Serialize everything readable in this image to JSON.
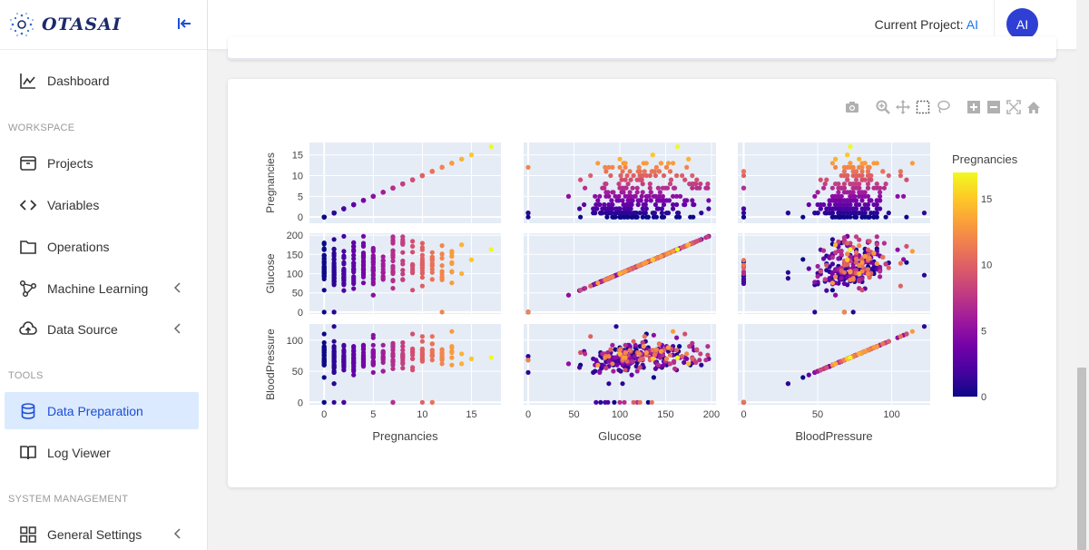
{
  "brand": {
    "name": "OTASAI"
  },
  "sidebar": {
    "items": [
      {
        "label": "Dashboard",
        "icon": "chart-line-icon"
      },
      {
        "label": "Projects",
        "icon": "archive-icon"
      },
      {
        "label": "Variables",
        "icon": "code-icon"
      },
      {
        "label": "Operations",
        "icon": "folder-icon"
      },
      {
        "label": "Machine Learning",
        "icon": "network-icon"
      },
      {
        "label": "Data Source",
        "icon": "cloud-upload-icon"
      },
      {
        "label": "Data Preparation",
        "icon": "database-icon"
      },
      {
        "label": "Log Viewer",
        "icon": "book-icon"
      },
      {
        "label": "General Settings",
        "icon": "grid-icon"
      }
    ],
    "sections": {
      "workspace": "WORKSPACE",
      "tools": "TOOLS",
      "system": "SYSTEM MANAGEMENT"
    }
  },
  "header": {
    "project_prefix": "Current Project: ",
    "project_name": "AI",
    "avatar": "AI"
  },
  "colors": {
    "accent": "#1d4ed8",
    "active_bg": "#dbeafe",
    "plot_bg": "#e5ecf6",
    "avatar": "#2f3fd3"
  },
  "chart_data": {
    "type": "scatter",
    "title": "",
    "variables": [
      "Pregnancies",
      "Glucose",
      "BloodPressure"
    ],
    "color_by": "Pregnancies",
    "colorbar": {
      "title": "Pregnancies",
      "ticks": [
        0,
        5,
        10,
        15
      ],
      "range": [
        0,
        17
      ]
    },
    "axis_ticks": {
      "Pregnancies": [
        0,
        5,
        10,
        15
      ],
      "Glucose": [
        0,
        50,
        100,
        150,
        200
      ],
      "BloodPressure": [
        0,
        50,
        100
      ]
    },
    "ranges": {
      "Pregnancies": [
        -1.5,
        18
      ],
      "Glucose": [
        -5,
        205
      ],
      "BloodPressure": [
        -4,
        126
      ]
    },
    "points": [
      [
        0,
        148,
        72
      ],
      [
        1,
        85,
        66
      ],
      [
        8,
        183,
        64
      ],
      [
        1,
        89,
        66
      ],
      [
        0,
        137,
        40
      ],
      [
        5,
        116,
        74
      ],
      [
        3,
        78,
        50
      ],
      [
        10,
        115,
        0
      ],
      [
        2,
        197,
        70
      ],
      [
        8,
        125,
        96
      ],
      [
        4,
        110,
        92
      ],
      [
        10,
        168,
        74
      ],
      [
        10,
        139,
        80
      ],
      [
        1,
        189,
        60
      ],
      [
        5,
        166,
        72
      ],
      [
        7,
        100,
        0
      ],
      [
        0,
        118,
        84
      ],
      [
        7,
        107,
        74
      ],
      [
        1,
        103,
        30
      ],
      [
        1,
        115,
        70
      ],
      [
        3,
        126,
        88
      ],
      [
        8,
        99,
        84
      ],
      [
        7,
        196,
        90
      ],
      [
        9,
        119,
        80
      ],
      [
        11,
        143,
        94
      ],
      [
        10,
        125,
        70
      ],
      [
        7,
        147,
        76
      ],
      [
        1,
        97,
        66
      ],
      [
        13,
        145,
        82
      ],
      [
        5,
        117,
        92
      ],
      [
        5,
        109,
        75
      ],
      [
        3,
        158,
        76
      ],
      [
        3,
        88,
        58
      ],
      [
        6,
        92,
        92
      ],
      [
        10,
        122,
        78
      ],
      [
        4,
        103,
        60
      ],
      [
        11,
        138,
        76
      ],
      [
        9,
        102,
        76
      ],
      [
        2,
        90,
        68
      ],
      [
        4,
        111,
        72
      ],
      [
        3,
        180,
        64
      ],
      [
        7,
        133,
        84
      ],
      [
        7,
        106,
        92
      ],
      [
        9,
        171,
        110
      ],
      [
        7,
        159,
        64
      ],
      [
        0,
        180,
        66
      ],
      [
        1,
        146,
        56
      ],
      [
        2,
        71,
        70
      ],
      [
        7,
        103,
        66
      ],
      [
        7,
        105,
        0
      ],
      [
        1,
        103,
        80
      ],
      [
        1,
        101,
        50
      ],
      [
        5,
        88,
        66
      ],
      [
        8,
        176,
        90
      ],
      [
        7,
        150,
        66
      ],
      [
        1,
        73,
        50
      ],
      [
        7,
        187,
        68
      ],
      [
        0,
        100,
        88
      ],
      [
        0,
        146,
        82
      ],
      [
        0,
        105,
        64
      ],
      [
        2,
        84,
        0
      ],
      [
        8,
        133,
        72
      ],
      [
        5,
        44,
        62
      ],
      [
        2,
        141,
        58
      ],
      [
        7,
        114,
        66
      ],
      [
        5,
        99,
        74
      ],
      [
        0,
        109,
        88
      ],
      [
        2,
        109,
        92
      ],
      [
        1,
        95,
        66
      ],
      [
        4,
        146,
        85
      ],
      [
        2,
        100,
        66
      ],
      [
        5,
        139,
        64
      ],
      [
        13,
        126,
        90
      ],
      [
        4,
        129,
        86
      ],
      [
        1,
        79,
        75
      ],
      [
        1,
        0,
        48
      ],
      [
        7,
        62,
        78
      ],
      [
        5,
        95,
        72
      ],
      [
        0,
        131,
        0
      ],
      [
        2,
        112,
        66
      ],
      [
        3,
        113,
        44
      ],
      [
        2,
        74,
        0
      ],
      [
        7,
        83,
        78
      ],
      [
        0,
        101,
        65
      ],
      [
        5,
        137,
        108
      ],
      [
        2,
        110,
        74
      ],
      [
        13,
        106,
        72
      ],
      [
        2,
        100,
        68
      ],
      [
        15,
        136,
        70
      ],
      [
        1,
        107,
        68
      ],
      [
        1,
        80,
        55
      ],
      [
        4,
        123,
        80
      ],
      [
        7,
        81,
        78
      ],
      [
        4,
        134,
        72
      ],
      [
        2,
        142,
        82
      ],
      [
        6,
        144,
        72
      ],
      [
        2,
        92,
        62
      ],
      [
        1,
        71,
        48
      ],
      [
        6,
        93,
        50
      ],
      [
        1,
        122,
        90
      ],
      [
        1,
        163,
        72
      ],
      [
        1,
        151,
        60
      ],
      [
        0,
        125,
        96
      ],
      [
        1,
        81,
        72
      ],
      [
        2,
        85,
        65
      ],
      [
        1,
        126,
        56
      ],
      [
        1,
        96,
        122
      ],
      [
        4,
        144,
        58
      ],
      [
        3,
        83,
        58
      ],
      [
        0,
        95,
        85
      ],
      [
        3,
        171,
        72
      ],
      [
        8,
        155,
        62
      ],
      [
        1,
        89,
        76
      ],
      [
        4,
        76,
        62
      ],
      [
        7,
        160,
        54
      ],
      [
        4,
        146,
        92
      ],
      [
        5,
        124,
        74
      ],
      [
        5,
        78,
        48
      ],
      [
        4,
        97,
        60
      ],
      [
        4,
        99,
        76
      ],
      [
        0,
        162,
        76
      ],
      [
        6,
        111,
        64
      ],
      [
        2,
        107,
        74
      ],
      [
        5,
        132,
        80
      ],
      [
        0,
        113,
        76
      ],
      [
        1,
        88,
        30
      ],
      [
        3,
        120,
        70
      ],
      [
        1,
        118,
        58
      ],
      [
        1,
        117,
        88
      ],
      [
        0,
        105,
        84
      ],
      [
        4,
        173,
        70
      ],
      [
        9,
        122,
        56
      ],
      [
        3,
        170,
        64
      ],
      [
        8,
        84,
        74
      ],
      [
        2,
        96,
        68
      ],
      [
        2,
        125,
        60
      ],
      [
        0,
        100,
        70
      ],
      [
        0,
        93,
        60
      ],
      [
        5,
        129,
        80
      ],
      [
        2,
        105,
        72
      ],
      [
        3,
        128,
        78
      ],
      [
        5,
        106,
        82
      ],
      [
        2,
        108,
        52
      ],
      [
        10,
        108,
        66
      ],
      [
        4,
        154,
        62
      ],
      [
        0,
        102,
        75
      ],
      [
        9,
        57,
        80
      ],
      [
        2,
        106,
        64
      ],
      [
        5,
        147,
        78
      ],
      [
        2,
        90,
        70
      ],
      [
        1,
        136,
        74
      ],
      [
        4,
        114,
        65
      ],
      [
        9,
        156,
        86
      ],
      [
        1,
        153,
        82
      ],
      [
        8,
        188,
        78
      ],
      [
        7,
        152,
        88
      ],
      [
        2,
        99,
        52
      ],
      [
        1,
        109,
        56
      ],
      [
        2,
        88,
        74
      ],
      [
        17,
        163,
        72
      ],
      [
        4,
        151,
        90
      ],
      [
        7,
        102,
        74
      ],
      [
        0,
        114,
        80
      ],
      [
        2,
        100,
        64
      ],
      [
        0,
        131,
        88
      ],
      [
        6,
        104,
        74
      ],
      [
        3,
        148,
        66
      ],
      [
        4,
        120,
        68
      ],
      [
        4,
        110,
        66
      ],
      [
        3,
        111,
        90
      ],
      [
        6,
        102,
        82
      ],
      [
        6,
        134,
        70
      ],
      [
        2,
        87,
        0
      ],
      [
        1,
        79,
        60
      ],
      [
        2,
        75,
        64
      ],
      [
        8,
        179,
        72
      ],
      [
        6,
        85,
        78
      ],
      [
        0,
        129,
        110
      ],
      [
        5,
        143,
        78
      ],
      [
        5,
        130,
        82
      ],
      [
        6,
        87,
        80
      ],
      [
        0,
        119,
        64
      ],
      [
        1,
        0,
        74
      ],
      [
        5,
        73,
        60
      ],
      [
        4,
        141,
        74
      ],
      [
        7,
        194,
        68
      ],
      [
        8,
        181,
        68
      ],
      [
        1,
        128,
        98
      ],
      [
        8,
        109,
        76
      ],
      [
        5,
        139,
        80
      ],
      [
        3,
        111,
        62
      ],
      [
        9,
        123,
        70
      ],
      [
        7,
        159,
        66
      ],
      [
        11,
        135,
        0
      ],
      [
        8,
        85,
        55
      ],
      [
        5,
        158,
        84
      ],
      [
        1,
        105,
        58
      ],
      [
        3,
        107,
        62
      ],
      [
        4,
        109,
        64
      ],
      [
        4,
        148,
        60
      ],
      [
        0,
        113,
        80
      ],
      [
        1,
        138,
        82
      ],
      [
        0,
        108,
        68
      ],
      [
        2,
        99,
        70
      ],
      [
        6,
        103,
        72
      ],
      [
        5,
        111,
        72
      ],
      [
        8,
        196,
        76
      ],
      [
        5,
        162,
        104
      ],
      [
        1,
        96,
        64
      ],
      [
        7,
        184,
        84
      ],
      [
        2,
        81,
        60
      ],
      [
        0,
        147,
        85
      ],
      [
        7,
        179,
        95
      ],
      [
        0,
        140,
        65
      ],
      [
        9,
        112,
        82
      ],
      [
        12,
        151,
        70
      ],
      [
        5,
        109,
        62
      ],
      [
        6,
        125,
        68
      ],
      [
        5,
        85,
        74
      ],
      [
        5,
        112,
        66
      ],
      [
        0,
        177,
        60
      ],
      [
        2,
        158,
        90
      ],
      [
        7,
        119,
        0
      ],
      [
        7,
        142,
        60
      ],
      [
        1,
        100,
        66
      ],
      [
        1,
        87,
        78
      ],
      [
        0,
        101,
        76
      ],
      [
        3,
        162,
        52
      ],
      [
        4,
        197,
        70
      ],
      [
        0,
        117,
        80
      ],
      [
        4,
        142,
        86
      ],
      [
        6,
        134,
        80
      ],
      [
        1,
        79,
        80
      ],
      [
        4,
        122,
        68
      ],
      [
        3,
        74,
        68
      ],
      [
        4,
        171,
        72
      ],
      [
        3,
        181,
        84
      ],
      [
        4,
        179,
        90
      ],
      [
        1,
        164,
        82
      ],
      [
        3,
        104,
        76
      ],
      [
        1,
        91,
        64
      ],
      [
        4,
        91,
        70
      ],
      [
        3,
        139,
        54
      ],
      [
        6,
        119,
        50
      ],
      [
        2,
        146,
        76
      ],
      [
        9,
        184,
        85
      ],
      [
        10,
        122,
        68
      ],
      [
        0,
        165,
        90
      ],
      [
        9,
        124,
        70
      ],
      [
        1,
        111,
        86
      ],
      [
        9,
        106,
        52
      ],
      [
        2,
        129,
        84
      ],
      [
        2,
        90,
        80
      ],
      [
        0,
        86,
        68
      ],
      [
        3,
        92,
        72
      ],
      [
        4,
        113,
        64
      ],
      [
        1,
        111,
        78
      ],
      [
        0,
        92,
        62
      ],
      [
        1,
        100,
        72
      ],
      [
        12,
        121,
        78
      ],
      [
        14,
        175,
        62
      ],
      [
        14,
        100,
        78
      ],
      [
        12,
        92,
        62
      ],
      [
        11,
        155,
        76
      ],
      [
        10,
        101,
        86
      ],
      [
        12,
        84,
        72
      ],
      [
        11,
        127,
        106
      ],
      [
        13,
        158,
        114
      ],
      [
        10,
        148,
        84
      ],
      [
        11,
        120,
        80
      ],
      [
        12,
        88,
        74
      ],
      [
        10,
        90,
        85
      ],
      [
        13,
        153,
        88
      ],
      [
        15,
        136,
        70
      ],
      [
        13,
        76,
        60
      ],
      [
        11,
        103,
        68
      ],
      [
        10,
        162,
        84
      ],
      [
        12,
        140,
        85
      ],
      [
        11,
        85,
        74
      ],
      [
        12,
        106,
        80
      ],
      [
        10,
        129,
        76
      ],
      [
        13,
        145,
        82
      ],
      [
        11,
        111,
        84
      ],
      [
        10,
        133,
        68
      ],
      [
        12,
        100,
        84
      ],
      [
        13,
        104,
        72
      ],
      [
        10,
        115,
        98
      ],
      [
        12,
        151,
        70
      ],
      [
        11,
        143,
        94
      ],
      [
        10,
        125,
        70
      ],
      [
        14,
        175,
        62
      ],
      [
        10,
        179,
        70
      ],
      [
        12,
        173,
        78
      ],
      [
        13,
        129,
        80
      ],
      [
        11,
        136,
        84
      ],
      [
        10,
        101,
        76
      ],
      [
        12,
        0,
        68
      ],
      [
        11,
        122,
        0
      ],
      [
        10,
        68,
        106
      ],
      [
        0,
        57,
        60
      ],
      [
        0,
        94,
        0
      ],
      [
        1,
        79,
        0
      ],
      [
        2,
        56,
        56
      ],
      [
        3,
        61,
        82
      ],
      [
        5,
        44,
        62
      ],
      [
        0,
        0,
        68
      ]
    ]
  }
}
